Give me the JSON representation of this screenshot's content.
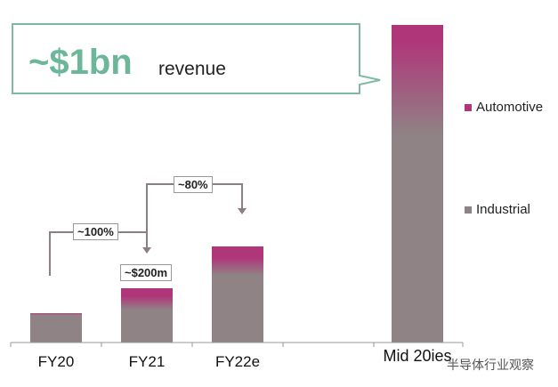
{
  "chart_data": {
    "type": "bar",
    "stacked": true,
    "categories": [
      "FY20",
      "FY21",
      "FY22e",
      "Mid 20ies"
    ],
    "series": [
      {
        "name": "Industrial",
        "color": "#8f8385",
        "values": [
          100,
          140,
          250,
          1050
        ]
      },
      {
        "name": "Automotive",
        "color": "#b0367a",
        "values": [
          8,
          60,
          104,
          120
        ]
      }
    ],
    "ylim": [
      0,
      1200
    ],
    "grid": false,
    "legend": "right",
    "annotations": {
      "headline": "~$1bn",
      "headline_suffix": "revenue",
      "fy21_label": "~$200m",
      "growth_1": "~100%",
      "growth_2": "~80%"
    }
  },
  "watermark": "半导体行业观察"
}
